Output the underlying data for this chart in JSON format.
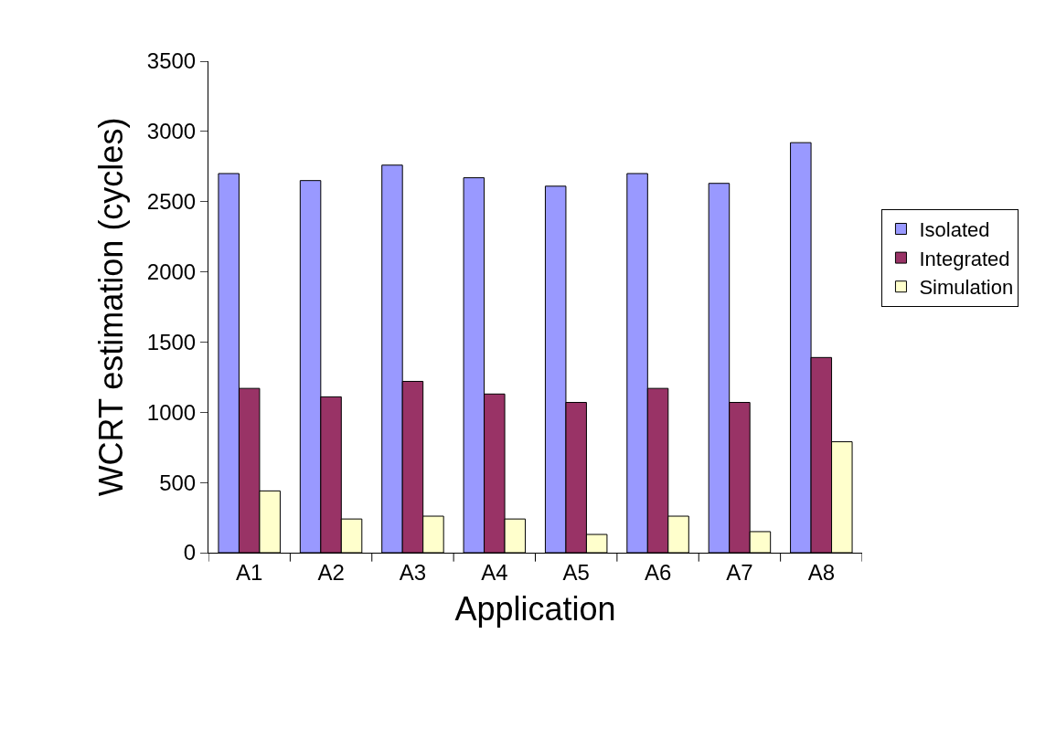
{
  "chart_data": {
    "type": "bar",
    "xlabel": "Application",
    "ylabel": "WCRT estimation (cycles)",
    "categories": [
      "A1",
      "A2",
      "A3",
      "A4",
      "A5",
      "A6",
      "A7",
      "A8"
    ],
    "series": [
      {
        "name": "Isolated",
        "color": "#9999ff",
        "values": [
          2700,
          2650,
          2760,
          2670,
          2610,
          2700,
          2630,
          2920
        ]
      },
      {
        "name": "Integrated",
        "color": "#993366",
        "values": [
          1170,
          1110,
          1220,
          1130,
          1070,
          1170,
          1070,
          1390
        ]
      },
      {
        "name": "Simulation",
        "color": "#ffffcc",
        "values": [
          440,
          240,
          260,
          240,
          130,
          260,
          150,
          790
        ]
      }
    ],
    "ylim": [
      0,
      3500
    ],
    "yticks": [
      0,
      500,
      1000,
      1500,
      2000,
      2500,
      3000,
      3500
    ],
    "grid": false,
    "legend": "right"
  }
}
